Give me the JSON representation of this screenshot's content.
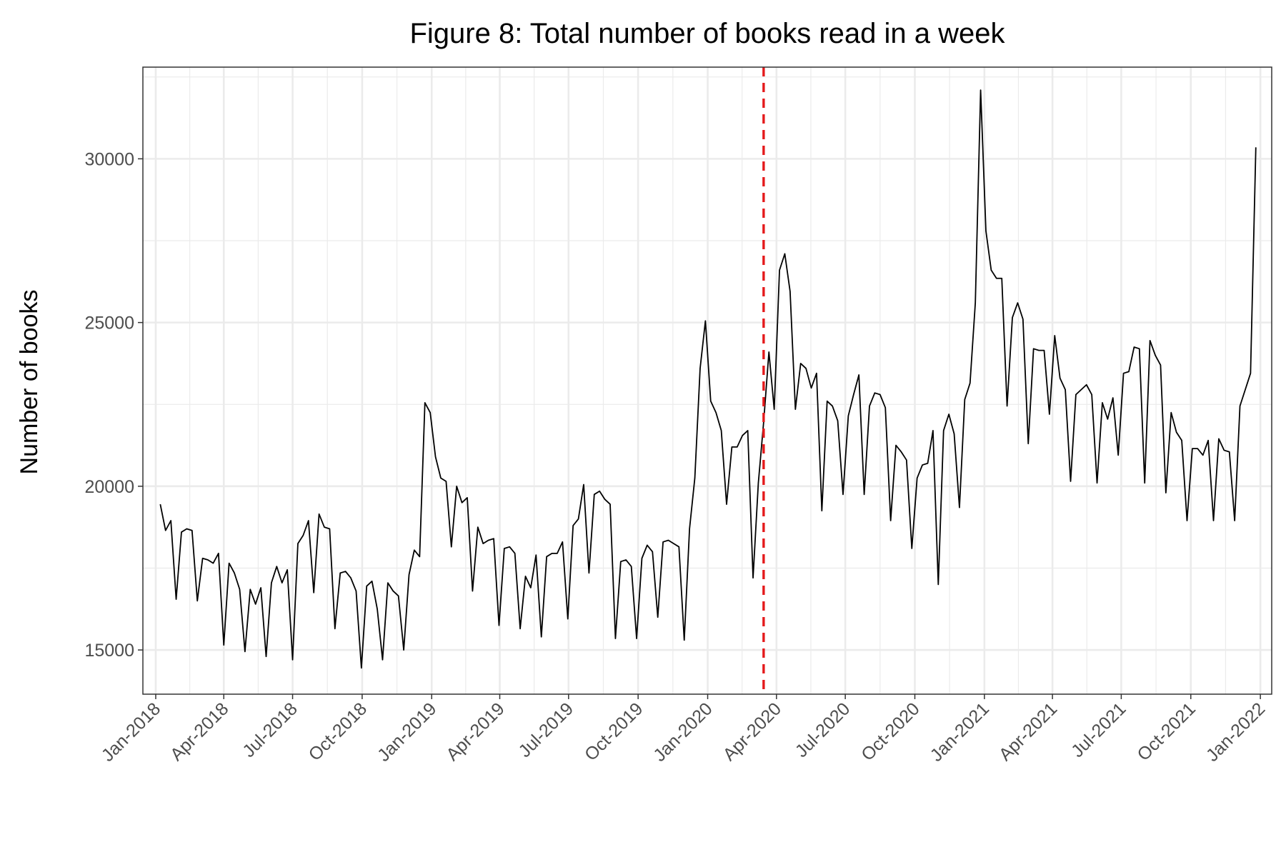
{
  "chart_data": {
    "type": "line",
    "title": "Figure 8: Total number of books read in a week",
    "xlabel": "",
    "ylabel": "Number of books",
    "x_range": [
      "2017-12-15",
      "2022-01-16"
    ],
    "ylim": [
      13650,
      32800
    ],
    "y_ticks": [
      15000,
      20000,
      25000,
      30000
    ],
    "x_ticks": [
      "2018-01-01",
      "2018-04-01",
      "2018-07-01",
      "2018-10-01",
      "2019-01-01",
      "2019-04-01",
      "2019-07-01",
      "2019-10-01",
      "2020-01-01",
      "2020-04-01",
      "2020-07-01",
      "2020-10-01",
      "2021-01-01",
      "2021-04-01",
      "2021-07-01",
      "2021-10-01",
      "2022-01-01"
    ],
    "x_tick_labels": [
      "Jan-2018",
      "Apr-2018",
      "Jul-2018",
      "Oct-2018",
      "Jan-2019",
      "Apr-2019",
      "Jul-2019",
      "Oct-2019",
      "Jan-2020",
      "Apr-2020",
      "Jul-2020",
      "Oct-2020",
      "Jan-2021",
      "Apr-2021",
      "Jul-2021",
      "Oct-2021",
      "Jan-2022"
    ],
    "grid": true,
    "vline": {
      "x": "2020-03-15",
      "color": "#e41a1c",
      "style": "dashed"
    },
    "series": [
      {
        "color": "#000000",
        "start": "2018-01-07",
        "step_days": 7,
        "values": [
          19450,
          18650,
          18950,
          16550,
          18600,
          18700,
          18650,
          16500,
          17800,
          17750,
          17650,
          17950,
          15150,
          17650,
          17350,
          16850,
          14950,
          16850,
          16400,
          16900,
          14800,
          17050,
          17550,
          17050,
          17450,
          14700,
          18250,
          18500,
          18950,
          16750,
          19150,
          18750,
          18700,
          15650,
          17350,
          17400,
          17200,
          16800,
          14450,
          16950,
          17100,
          16250,
          14700,
          17050,
          16800,
          16650,
          15000,
          17300,
          18050,
          17850,
          22550,
          22250,
          20900,
          20250,
          20150,
          18150,
          20000,
          19500,
          19650,
          16800,
          18750,
          18250,
          18350,
          18400,
          15750,
          18100,
          18150,
          17950,
          15650,
          17250,
          16900,
          17900,
          15400,
          17850,
          17950,
          17950,
          18300,
          15950,
          18800,
          19000,
          20050,
          17350,
          19750,
          19850,
          19600,
          19450,
          15350,
          17700,
          17750,
          17550,
          15350,
          17800,
          18200,
          18000,
          16000,
          18300,
          18350,
          18250,
          18150,
          15300,
          18700,
          20250,
          23600,
          25050,
          22600,
          22250,
          21700,
          19450,
          21200,
          21200,
          21550,
          21700,
          17200,
          20100,
          21950,
          24100,
          22350,
          26600,
          27100,
          25950,
          22350,
          23750,
          23600,
          23000,
          23450,
          19250,
          22600,
          22450,
          22000,
          19750,
          22150,
          22800,
          23400,
          19750,
          22450,
          22850,
          22800,
          22400,
          18950,
          21250,
          21050,
          20800,
          18100,
          20250,
          20650,
          20700,
          21700,
          17000,
          21700,
          22200,
          21600,
          19350,
          22650,
          23150,
          25600,
          32100,
          27800,
          26600,
          26350,
          26350,
          22450,
          25150,
          25600,
          25100,
          21300,
          24200,
          24150,
          24150,
          22200,
          24600,
          23300,
          22950,
          20150,
          22800,
          22950,
          23100,
          22800,
          20100,
          22550,
          22050,
          22700,
          20950,
          23450,
          23500,
          24250,
          24200,
          20100,
          24450,
          24000,
          23700,
          19800,
          22250,
          21650,
          21400,
          18950,
          21150,
          21150,
          20950,
          21400,
          18950,
          21450,
          21100,
          21050,
          18950,
          22450,
          22950,
          23450,
          30350
        ]
      }
    ]
  }
}
